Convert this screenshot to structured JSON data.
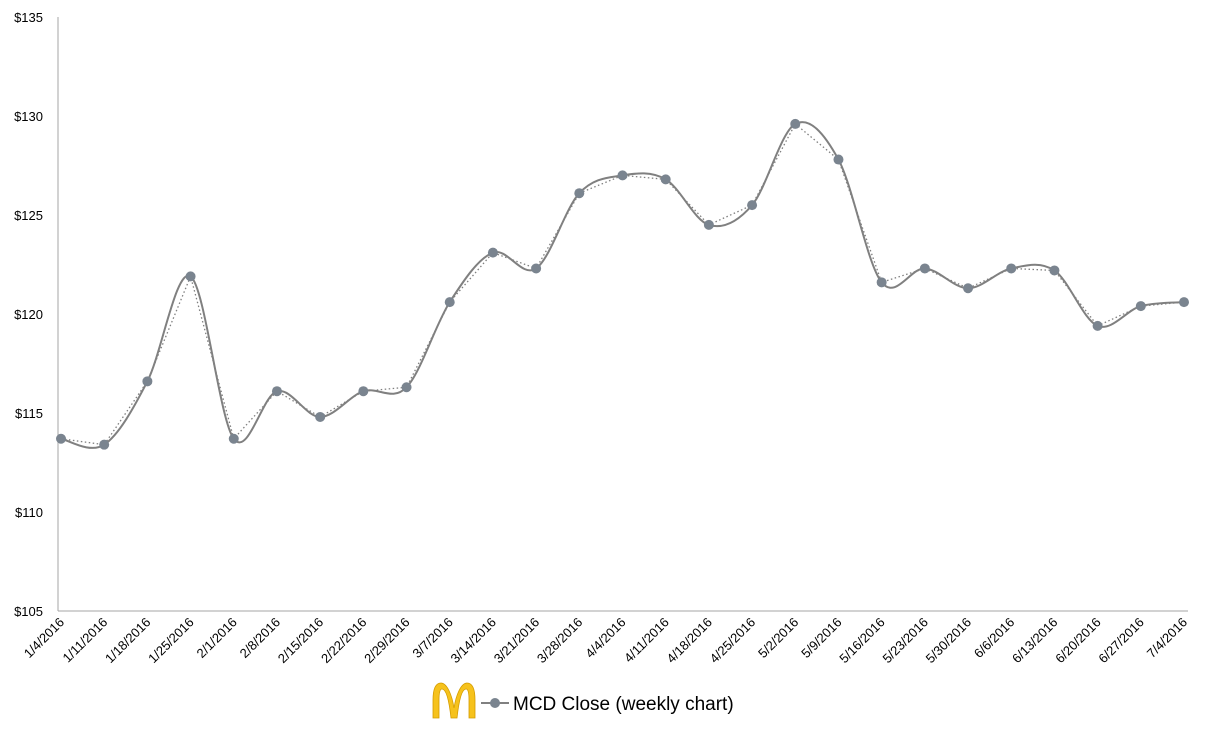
{
  "chart_data": {
    "type": "line",
    "title": "",
    "xlabel": "",
    "ylabel": "",
    "ylim": [
      105,
      135
    ],
    "yticks": [
      "$105",
      "$110",
      "$115",
      "$120",
      "$125",
      "$130",
      "$135"
    ],
    "categories": [
      "1/4/2016",
      "1/11/2016",
      "1/18/2016",
      "1/25/2016",
      "2/1/2016",
      "2/8/2016",
      "2/15/2016",
      "2/22/2016",
      "2/29/2016",
      "3/7/2016",
      "3/14/2016",
      "3/21/2016",
      "3/28/2016",
      "4/4/2016",
      "4/11/2016",
      "4/18/2016",
      "4/25/2016",
      "5/2/2016",
      "5/9/2016",
      "5/16/2016",
      "5/23/2016",
      "5/30/2016",
      "6/6/2016",
      "6/13/2016",
      "6/20/2016",
      "6/27/2016",
      "7/4/2016"
    ],
    "series": [
      {
        "name": "MCD Close (weekly chart)",
        "values": [
          113.7,
          113.4,
          116.6,
          121.9,
          113.7,
          116.1,
          114.8,
          116.1,
          116.3,
          120.6,
          123.1,
          122.3,
          126.1,
          127.0,
          126.8,
          124.5,
          125.5,
          129.6,
          127.8,
          121.6,
          122.3,
          121.3,
          122.3,
          122.2,
          119.4,
          120.4,
          120.6
        ]
      }
    ],
    "trendline": "dotted",
    "grid": false,
    "legend": "bottom-center",
    "colors": {
      "series": "#808080",
      "marker": "#7a848f",
      "axis": "#a6a6a6",
      "logo": "#f6c21c"
    }
  }
}
